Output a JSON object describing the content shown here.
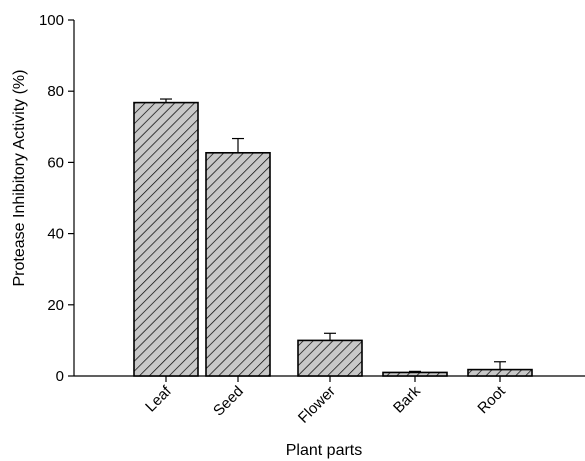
{
  "chart_data": {
    "type": "bar",
    "title": "",
    "xlabel": "Plant parts",
    "ylabel": "Protease Inhibitory Activity (%)",
    "categories": [
      "Leaf",
      "Seed",
      "Flower",
      "Bark",
      "Root"
    ],
    "values": [
      76.8,
      62.7,
      10.0,
      1.0,
      1.8
    ],
    "errors": [
      1.0,
      4.0,
      2.0,
      0.3,
      2.2
    ],
    "ylim": [
      0,
      100
    ],
    "yticks": [
      "0",
      "20",
      "40",
      "60",
      "80",
      "100"
    ],
    "grid": false,
    "bar_fill": "#c8c8c8",
    "bar_pattern": "diagonal-hatch",
    "bar_stroke": "#000000"
  }
}
